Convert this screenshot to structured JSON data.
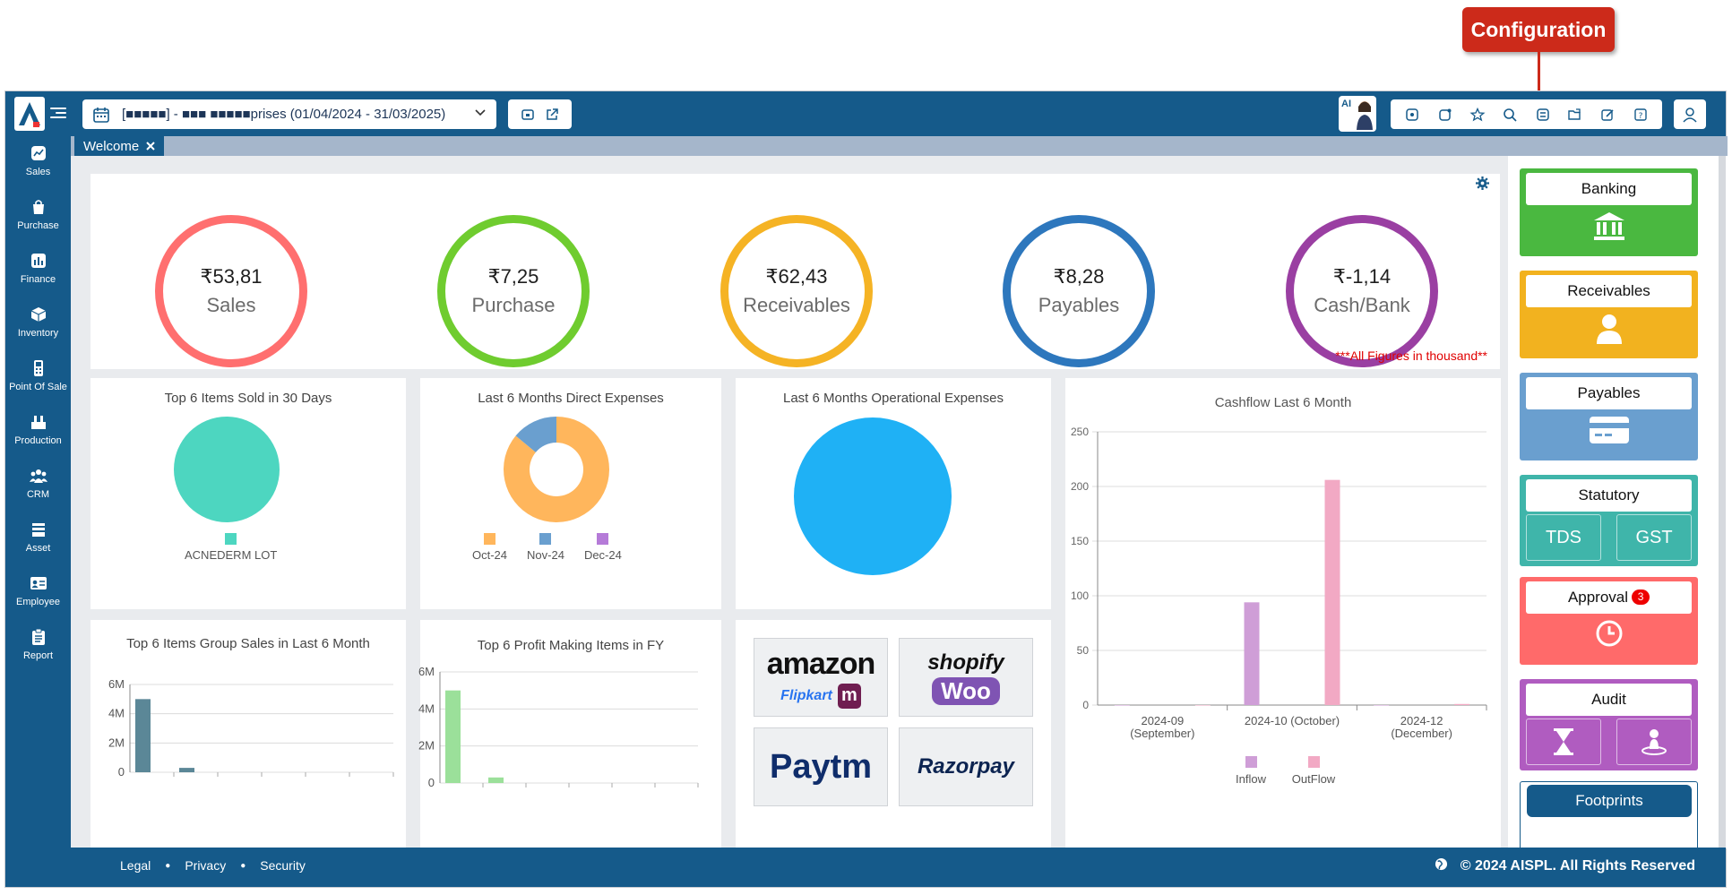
{
  "callout": {
    "label": "Configuration"
  },
  "topbar": {
    "company_name": "[■■■■■] - ■■■ ■■■■■prises (01/04/2024 - 31/03/2025)",
    "ai_badge": "AI"
  },
  "sidebar": {
    "items": [
      {
        "label": "Sales",
        "icon": "sales-chart-icon"
      },
      {
        "label": "Purchase",
        "icon": "shopping-bag-icon"
      },
      {
        "label": "Finance",
        "icon": "finance-bar-icon"
      },
      {
        "label": "Inventory",
        "icon": "box-icon"
      },
      {
        "label": "Point Of Sale",
        "icon": "pos-terminal-icon"
      },
      {
        "label": "Production",
        "icon": "factory-icon"
      },
      {
        "label": "CRM",
        "icon": "people-group-icon"
      },
      {
        "label": "Asset",
        "icon": "asset-stack-icon"
      },
      {
        "label": "Employee",
        "icon": "id-card-icon"
      },
      {
        "label": "Report",
        "icon": "clipboard-icon"
      }
    ]
  },
  "tabs": [
    {
      "label": "Welcome"
    }
  ],
  "kpis": {
    "note": "***All Figures in thousand**",
    "items": [
      {
        "value": "₹53,81",
        "label": "Sales",
        "color": "#ff6f6f"
      },
      {
        "value": "₹7,25",
        "label": "Purchase",
        "color": "#6fcc2f"
      },
      {
        "value": "₹62,43",
        "label": "Receivables",
        "color": "#f5b324"
      },
      {
        "value": "₹8,28",
        "label": "Payables",
        "color": "#2d77bd"
      },
      {
        "value": "₹-1,14",
        "label": "Cash/Bank",
        "color": "#9a3fa2"
      }
    ]
  },
  "widgets": {
    "top_items_sold": {
      "title": "Top 6 Items Sold in 30 Days",
      "legend": [
        "ACNEDERM LOT"
      ],
      "color": "#4dd6c0"
    },
    "direct_expenses": {
      "title": "Last 6 Months Direct Expenses",
      "legend": [
        "Oct-24",
        "Nov-24",
        "Dec-24"
      ],
      "colors": [
        "#ffb65c",
        "#6a9fcf",
        "#b57bd8"
      ]
    },
    "operational_expenses": {
      "title": "Last 6 Months Operational Expenses",
      "color": "#1fb1f5"
    },
    "group_sales": {
      "title": "Top 6 Items Group Sales in Last 6 Month",
      "yticks": [
        "6M",
        "4M",
        "2M",
        "0"
      ]
    },
    "profit_items": {
      "title": "Top 6 Profit Making Items in FY",
      "yticks": [
        "6M",
        "4M",
        "2M",
        "0"
      ]
    },
    "integrations": {
      "logos": [
        "amazon",
        "Flipkart",
        "m",
        "shopify",
        "Woo",
        "Paytm",
        "Razorpay"
      ]
    }
  },
  "chart_data": [
    {
      "type": "pie",
      "title": "Top 6 Items Sold in 30 Days",
      "categories": [
        "ACNEDERM LOT"
      ],
      "values": [
        100
      ]
    },
    {
      "type": "pie",
      "title": "Last 6 Months Direct Expenses",
      "categories": [
        "Oct-24",
        "Nov-24",
        "Dec-24"
      ],
      "values": [
        86,
        14,
        0
      ]
    },
    {
      "type": "pie",
      "title": "Last 6 Months Operational Expenses",
      "values": [
        100
      ]
    },
    {
      "type": "bar",
      "title": "Cashflow Last 6 Month",
      "categories": [
        "2024-09 (September)",
        "2024-10 (October)",
        "2024-12 (December)"
      ],
      "series": [
        {
          "name": "Inflow",
          "values": [
            0,
            94,
            0
          ],
          "color": "#cf9ed7"
        },
        {
          "name": "OutFlow",
          "values": [
            0,
            206,
            1
          ],
          "color": "#f2a9c4"
        }
      ],
      "yticks": [
        "0",
        "50",
        "100",
        "150",
        "200",
        "250"
      ],
      "ylim": [
        0,
        250
      ]
    },
    {
      "type": "bar",
      "title": "Top 6 Items Group Sales in Last 6 Month",
      "values": [
        5.0,
        0.3,
        0,
        0,
        0,
        0
      ],
      "ylim": [
        0,
        6
      ],
      "color": "#5b8797"
    },
    {
      "type": "bar",
      "title": "Top 6 Profit Making Items in FY",
      "values": [
        5.0,
        0.3,
        0,
        0,
        0,
        0
      ],
      "ylim": [
        0,
        6
      ],
      "color": "#9be09a"
    }
  ],
  "right_panel": {
    "banking": {
      "label": "Banking",
      "color": "#4ab840"
    },
    "receivables": {
      "label": "Receivables",
      "color": "#f2b21f"
    },
    "payables": {
      "label": "Payables",
      "color": "#6a9fcf"
    },
    "statutory": {
      "label": "Statutory",
      "color": "#3fb5aa",
      "sub": [
        "TDS",
        "GST"
      ]
    },
    "approval": {
      "label": "Approval",
      "badge": "3",
      "color": "#ff6a6a"
    },
    "audit": {
      "label": "Audit",
      "color": "#b05cc0"
    },
    "footprints": {
      "label": "Footprints"
    }
  },
  "footer": {
    "links": [
      "Legal",
      "Privacy",
      "Security"
    ],
    "copyright": "© 2024 AISPL. All Rights Reserved"
  }
}
